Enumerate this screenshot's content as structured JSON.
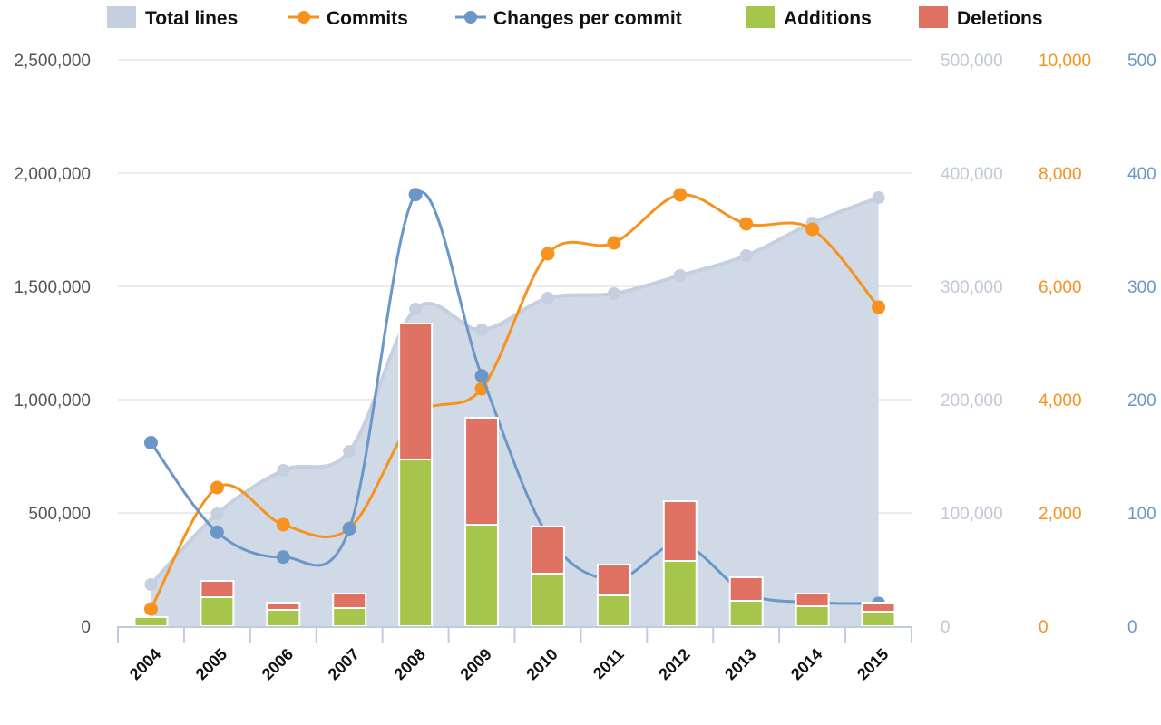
{
  "chart_data": {
    "type": "bar+line+area",
    "categories": [
      "2004",
      "2005",
      "2006",
      "2007",
      "2008",
      "2009",
      "2010",
      "2011",
      "2012",
      "2013",
      "2014",
      "2015"
    ],
    "legend_placement": "top",
    "grid": true,
    "axes": {
      "left": {
        "range": [
          0,
          2500000
        ],
        "ticks": [
          "0",
          "500,000",
          "1,000,000",
          "1,500,000",
          "2,000,000",
          "2,500,000"
        ],
        "color": "#555555"
      },
      "right_total": {
        "range": [
          0,
          500000
        ],
        "ticks": [
          "0",
          "100,000",
          "200,000",
          "300,000",
          "400,000",
          "500,000"
        ],
        "color": "#c0c8d6"
      },
      "right_commits": {
        "range": [
          0,
          10000
        ],
        "ticks": [
          "0",
          "2,000",
          "4,000",
          "6,000",
          "8,000",
          "10,000"
        ],
        "color": "#f7921e"
      },
      "right_changes": {
        "range": [
          0,
          500
        ],
        "ticks": [
          "0",
          "100",
          "200",
          "300",
          "400",
          "500"
        ],
        "color": "#6b96c8"
      }
    },
    "series": [
      {
        "name": "Total lines",
        "type": "area",
        "axis": "right_total",
        "color": "#c5cfdf",
        "values": [
          36800,
          99200,
          137600,
          154400,
          280000,
          261600,
          289600,
          293600,
          309600,
          327200,
          356000,
          378400
        ]
      },
      {
        "name": "Commits",
        "type": "line",
        "axis": "right_commits",
        "color": "#f7921e",
        "values": [
          304,
          2448,
          1792,
          1728,
          3700,
          4192,
          6576,
          6768,
          7616,
          7104,
          7008,
          5632
        ]
      },
      {
        "name": "Changes per commit",
        "type": "line",
        "axis": "right_changes",
        "color": "#6b96c8",
        "values": [
          162,
          83,
          61,
          86,
          381,
          221,
          80,
          41,
          73,
          29,
          21,
          20
        ]
      },
      {
        "name": "Additions",
        "type": "bar",
        "axis": "left",
        "stack": true,
        "color": "#a5c64a",
        "values": [
          40000,
          128000,
          72000,
          80000,
          736000,
          448000,
          232000,
          136000,
          288000,
          112000,
          88000,
          64000
        ]
      },
      {
        "name": "Deletions",
        "type": "bar",
        "axis": "left",
        "stack": true,
        "color": "#e07264",
        "values": [
          0,
          72000,
          32000,
          64000,
          600000,
          472000,
          208000,
          136000,
          264000,
          104000,
          56000,
          40000
        ]
      }
    ]
  }
}
